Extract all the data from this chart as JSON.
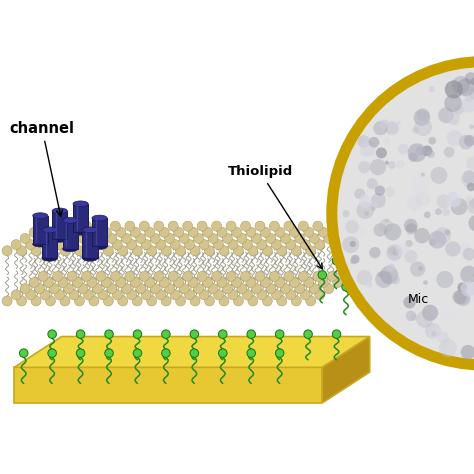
{
  "bg_color": "#ffffff",
  "substrate_color": "#e8c832",
  "substrate_top_color": "#f0d840",
  "substrate_right_color": "#b89018",
  "substrate_edge_color": "#c8a820",
  "lipid_head_color": "#d4c490",
  "lipid_head_edge": "#b0a060",
  "tail_color": "#9a9a88",
  "channel_color": "#2a2a7a",
  "channel_top_color": "#3a3a9a",
  "channel_dark_color": "#1a1a5a",
  "thiolipid_head_color": "#55cc44",
  "thiolipid_tail_color": "#228822",
  "label_channel": "channel",
  "label_thiolipid": "Thiolipid",
  "label_mic": "Mic",
  "circle_fill": "#e2e2e2",
  "circle_edge": "#c8a000",
  "circle_edge_width": 8
}
